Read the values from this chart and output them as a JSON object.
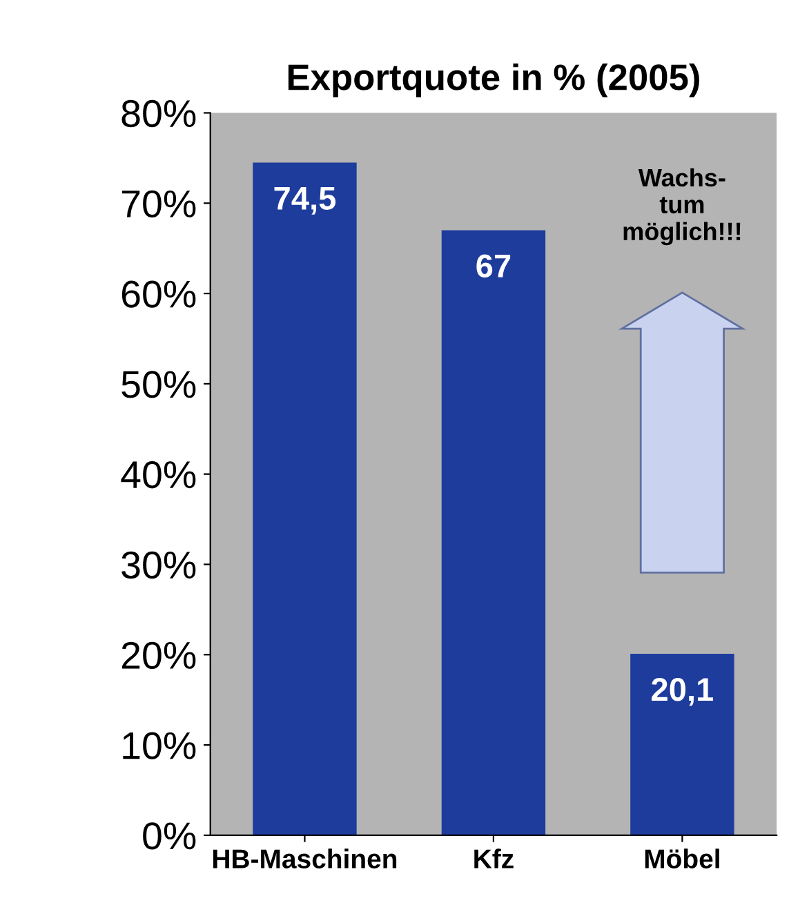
{
  "chart_data": {
    "type": "bar",
    "title": "Exportquote in % (2005)",
    "categories": [
      "HB-Maschinen",
      "Kfz",
      "Möbel"
    ],
    "values": [
      74.5,
      67,
      20.1
    ],
    "value_labels": [
      "74,5",
      "67",
      "20,1"
    ],
    "color": "#1e3c9c",
    "ylim": [
      0,
      80
    ],
    "yticks": [
      {
        "value": 0,
        "label": "0%"
      },
      {
        "value": 10,
        "label": "10%"
      },
      {
        "value": 20,
        "label": "20%"
      },
      {
        "value": 30,
        "label": "30%"
      },
      {
        "value": 40,
        "label": "40%"
      },
      {
        "value": 50,
        "label": "50%"
      },
      {
        "value": 60,
        "label": "60%"
      },
      {
        "value": 70,
        "label": "70%"
      },
      {
        "value": 80,
        "label": "80%"
      }
    ],
    "annotations": [
      "Wachs-\ntum\nmöglich!!!"
    ],
    "grid": false,
    "legend": false
  }
}
